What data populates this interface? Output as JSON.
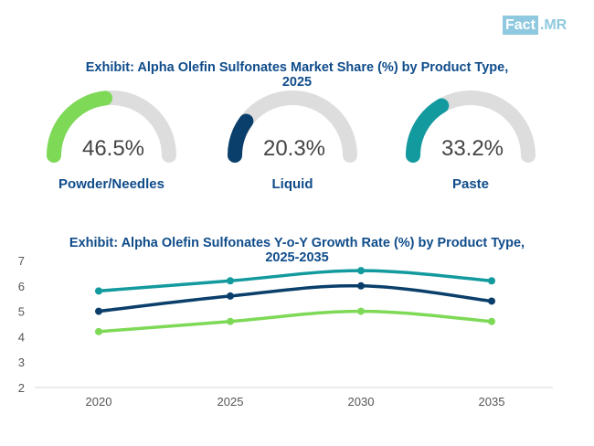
{
  "logo": {
    "part1": "Fact",
    "part2": ".MR"
  },
  "chart1": {
    "title_line1": "Exhibit: Alpha Olefin Sulfonates Market Share (%) by Product Type,",
    "title_line2": "2025"
  },
  "chart2": {
    "title_line1": "Exhibit: Alpha Olefin Sulfonates Y-o-Y Growth Rate (%) by Product Type,",
    "title_line2": "2025-2035"
  },
  "colors": {
    "title": "#0f4c8a",
    "track": "#dddddd",
    "powder": "#7ed957",
    "liquid": "#0b3f6b",
    "paste": "#139a9e",
    "axis_text": "#555555"
  },
  "chart_data": [
    {
      "type": "gauge",
      "title": "Exhibit: Alpha Olefin Sulfonates Market Share (%) by Product Type, 2025",
      "items": [
        {
          "label": "Powder/Needles",
          "value": 46.5,
          "display": "46.5%",
          "color": "#7ed957"
        },
        {
          "label": "Liquid",
          "value": 20.3,
          "display": "20.3%",
          "color": "#0b3f6b"
        },
        {
          "label": "Paste",
          "value": 33.2,
          "display": "33.2%",
          "color": "#139a9e"
        }
      ]
    },
    {
      "type": "line",
      "title": "Exhibit: Alpha Olefin Sulfonates Y-o-Y Growth Rate (%) by Product Type, 2025-2035",
      "x": [
        "2020",
        "2025",
        "2030",
        "2035"
      ],
      "yticks": [
        2,
        3,
        4,
        5,
        6,
        7
      ],
      "ylim": [
        2,
        7
      ],
      "series": [
        {
          "name": "Paste",
          "values": [
            5.8,
            6.2,
            6.6,
            6.2
          ],
          "color": "#139a9e"
        },
        {
          "name": "Liquid",
          "values": [
            5.0,
            5.6,
            6.0,
            5.4
          ],
          "color": "#0b3f6b"
        },
        {
          "name": "Powder/Needles",
          "values": [
            4.2,
            4.6,
            5.0,
            4.6
          ],
          "color": "#7ed957"
        }
      ]
    }
  ]
}
